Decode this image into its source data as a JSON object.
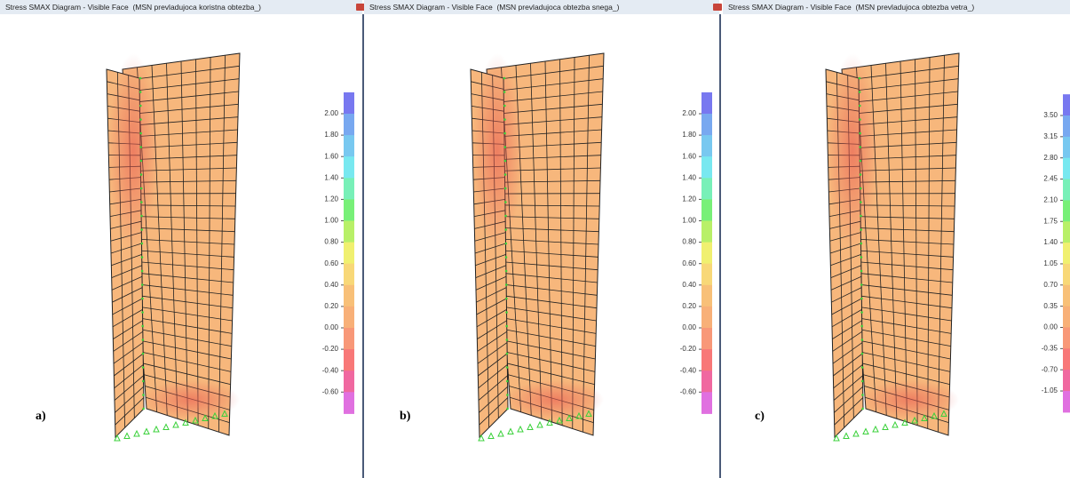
{
  "panels": [
    {
      "title": "Stress SMAX Diagram - Visible Face  (MSN prevladujoca koristna obtezba_)",
      "label": "a)",
      "legend_ticks": [
        "2.00",
        "1.80",
        "1.60",
        "1.40",
        "1.20",
        "1.00",
        "0.80",
        "0.60",
        "0.40",
        "0.20",
        "0.00",
        "-0.20",
        "-0.40",
        "-0.60"
      ]
    },
    {
      "title": "Stress SMAX Diagram - Visible Face  (MSN prevladujoca obtezba snega_)",
      "label": "b)",
      "legend_ticks": [
        "2.00",
        "1.80",
        "1.60",
        "1.40",
        "1.20",
        "1.00",
        "0.80",
        "0.60",
        "0.40",
        "0.20",
        "0.00",
        "-0.20",
        "-0.40",
        "-0.60"
      ]
    },
    {
      "title": "Stress SMAX Diagram - Visible Face  (MSN prevladujoca obtezba vetra_)",
      "label": "c)",
      "legend_ticks": [
        "3.50",
        "3.15",
        "2.80",
        "2.45",
        "2.10",
        "1.75",
        "1.40",
        "1.05",
        "0.70",
        "0.35",
        "0.00",
        "-0.35",
        "-0.70",
        "-1.05"
      ]
    }
  ]
}
